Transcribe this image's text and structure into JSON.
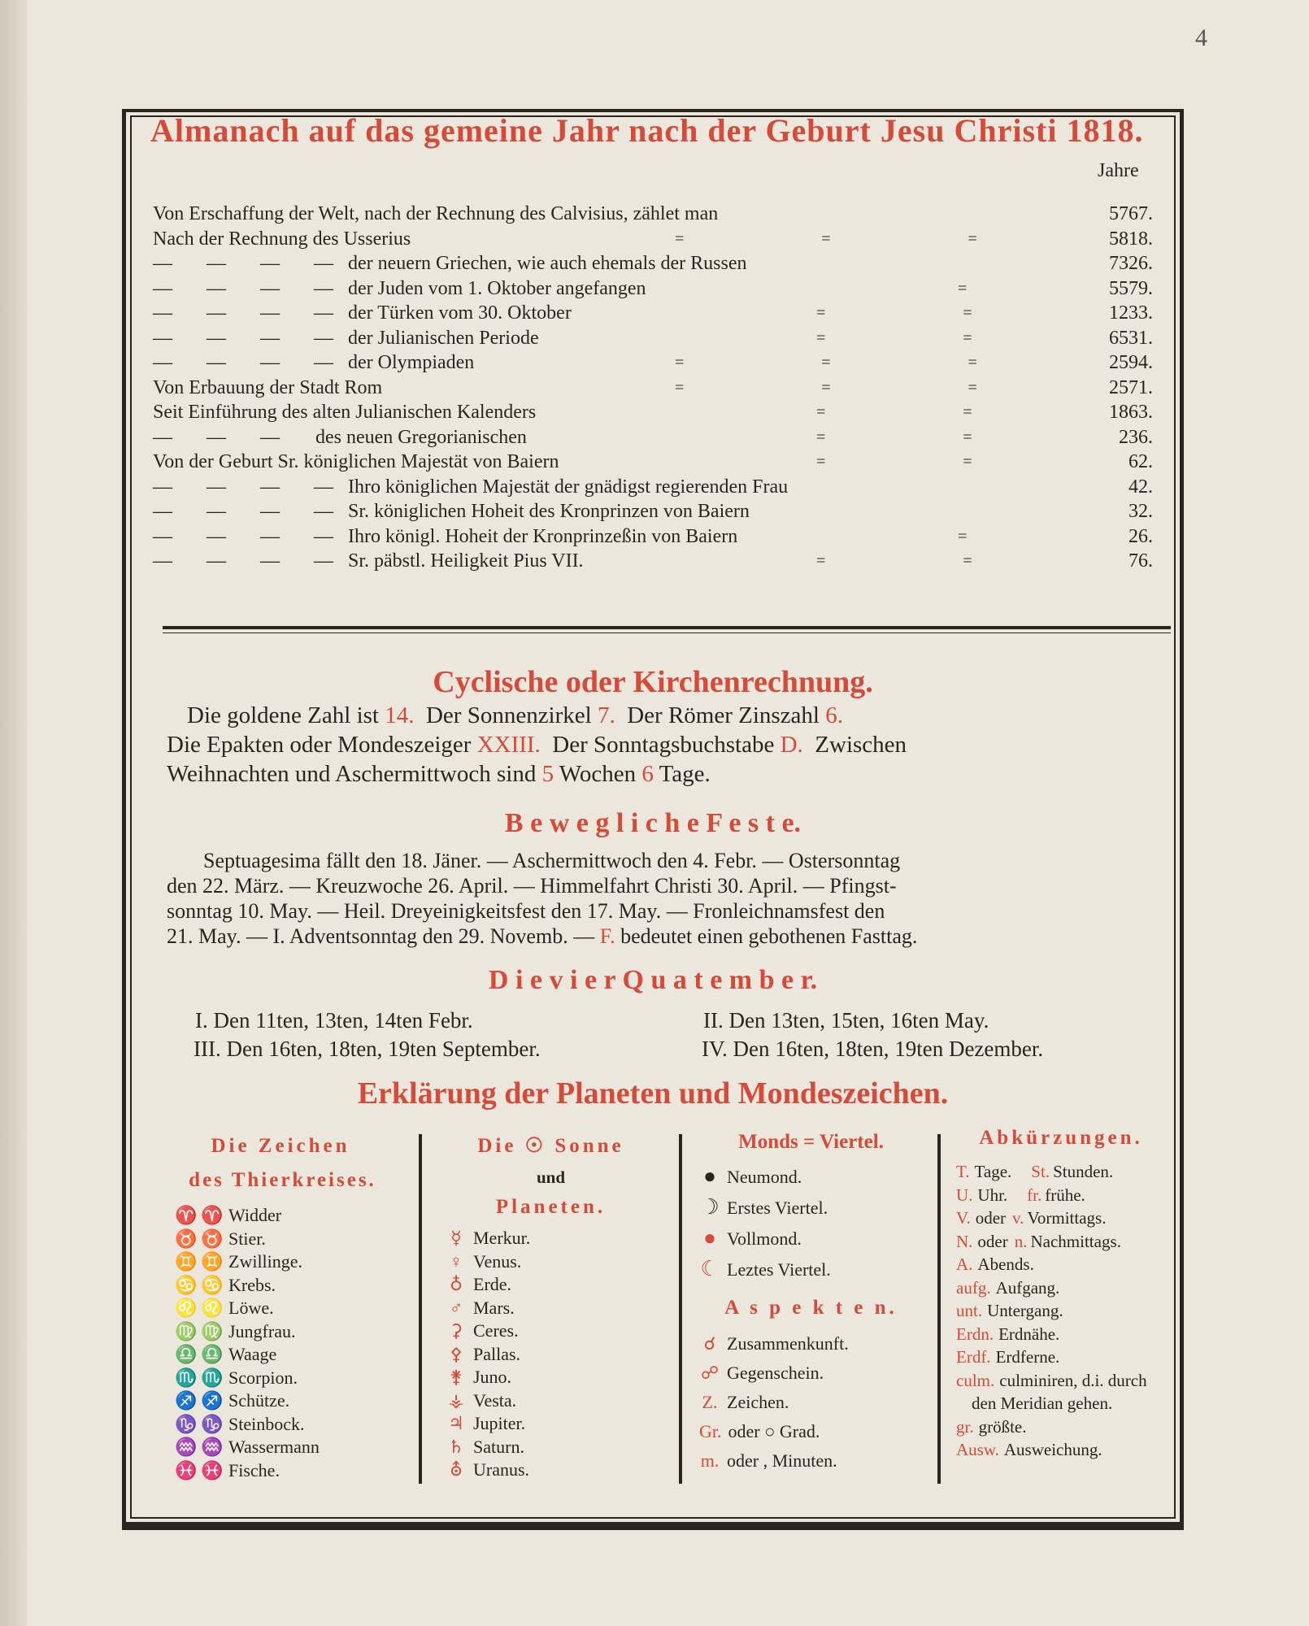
{
  "page_number": "4",
  "title": "Almanach auf das gemeine Jahr nach der Geburt Jesu Christi 1818.",
  "jahre_header": "Jahre",
  "years_table": [
    {
      "lead": "",
      "text": "Von Erschaffung der Welt, nach der Rechnung des Calvisius, zählet man",
      "fill": "",
      "value": "5767."
    },
    {
      "lead": "",
      "text": "Nach der Rechnung des Usserius",
      "fill": "= = =",
      "value": "5818."
    },
    {
      "lead": "— — — —",
      "text": "der neuern Griechen, wie auch ehemals der Russen",
      "fill": "",
      "value": "7326."
    },
    {
      "lead": "— — — —",
      "text": "der Juden vom 1. Oktober angefangen",
      "fill": "    =",
      "value": "5579."
    },
    {
      "lead": "— — — —",
      "text": "der Türken vom 30. Oktober",
      "fill": "  = =",
      "value": "1233."
    },
    {
      "lead": "— — — —",
      "text": "der Julianischen Periode",
      "fill": "  = =",
      "value": "6531."
    },
    {
      "lead": "— — — —",
      "text": "der Olympiaden",
      "fill": "= = =",
      "value": "2594."
    },
    {
      "lead": "",
      "text": "Von Erbauung der Stadt Rom",
      "fill": "= = =",
      "value": "2571."
    },
    {
      "lead": "",
      "text": "Seit Einführung des alten Julianischen Kalenders",
      "fill": "  = =",
      "value": "1863."
    },
    {
      "lead": "— — —",
      "text": "des neuen Gregorianischen",
      "fill": "  = =",
      "value": "236."
    },
    {
      "lead": "",
      "text": "Von der Geburt Sr. königlichen Majestät von Baiern",
      "fill": "  = =",
      "value": "62."
    },
    {
      "lead": "— — — —",
      "text": "Ihro königlichen Majestät der gnädigst regierenden Frau",
      "fill": "",
      "value": "42."
    },
    {
      "lead": "— — — —",
      "text": "Sr. königlichen Hoheit des Kronprinzen von Baiern",
      "fill": "",
      "value": "32."
    },
    {
      "lead": "— — — —",
      "text": "Ihro königl. Hoheit der Kronprinzeßin von Baiern",
      "fill": "    =",
      "value": "26."
    },
    {
      "lead": "— — — —",
      "text": "Sr. päbstl. Heiligkeit Pius VII.",
      "fill": "  = =",
      "value": "76."
    }
  ],
  "cyclic": {
    "heading": "Cyclische oder Kirchenrechnung.",
    "line1": [
      {
        "t": "Die goldene Zahl ist "
      },
      {
        "t": "14.",
        "red": true
      },
      {
        "t": "  Der Sonnenzirkel "
      },
      {
        "t": "7.",
        "red": true
      },
      {
        "t": "  Der Römer Zinszahl "
      },
      {
        "t": "6.",
        "red": true
      }
    ],
    "line2": [
      {
        "t": "Die Epakten oder Mondeszeiger "
      },
      {
        "t": "XXIII.",
        "red": true
      },
      {
        "t": "  Der Sonntagsbuchstabe "
      },
      {
        "t": "D.",
        "red": true
      },
      {
        "t": "  Zwischen"
      }
    ],
    "line3": [
      {
        "t": "Weihnachten und Aschermittwoch sind "
      },
      {
        "t": "5",
        "red": true
      },
      {
        "t": " Wochen "
      },
      {
        "t": "6",
        "red": true
      },
      {
        "t": " Tage."
      }
    ]
  },
  "feasts": {
    "heading": "B e w e g l i c h e   F e s t e.",
    "lines": [
      [
        {
          "t": "Septuagesima fällt den 18. Jäner. — Aschermittwoch den 4. Febr. — Ostersonntag"
        }
      ],
      [
        {
          "t": "den 22. März. — Kreuzwoche 26. April. — Himmelfahrt Christi 30. April. — Pfingst-"
        }
      ],
      [
        {
          "t": "sonntag 10. May. — Heil. Dreyeinigkeitsfest den 17. May. — Fronleichnamsfest den"
        }
      ],
      [
        {
          "t": "21. May. — I. Adventsonntag den 29. Novemb. — "
        },
        {
          "t": "F.",
          "red": true
        },
        {
          "t": " bedeutet einen gebothenen Fasttag."
        }
      ]
    ]
  },
  "quatember": {
    "heading": "D i e   v i e r   Q u a t e m b e r.",
    "items": [
      "I. Den 11ten, 13ten, 14ten Febr.",
      "II. Den 13ten, 15ten, 16ten May.",
      "III. Den 16ten, 18ten, 19ten September.",
      "IV. Den 16ten, 18ten, 19ten Dezember."
    ]
  },
  "legend": {
    "heading": "Erklärung der Planeten und Mondeszeichen.",
    "zodiac": {
      "heading1": "Die Zeichen",
      "heading2": "des Thierkreises.",
      "items": [
        {
          "sym": "♈",
          "name": "Widder"
        },
        {
          "sym": "♉",
          "name": "Stier."
        },
        {
          "sym": "♊",
          "name": "Zwillinge."
        },
        {
          "sym": "♋",
          "name": "Krebs."
        },
        {
          "sym": "♌",
          "name": "Löwe."
        },
        {
          "sym": "♍",
          "name": "Jungfrau."
        },
        {
          "sym": "♎",
          "name": "Waage"
        },
        {
          "sym": "♏",
          "name": "Scorpion."
        },
        {
          "sym": "♐",
          "name": "Schütze."
        },
        {
          "sym": "♑",
          "name": "Steinbock."
        },
        {
          "sym": "♒",
          "name": "Wassermann"
        },
        {
          "sym": "♓",
          "name": "Fische."
        }
      ]
    },
    "planets": {
      "heading1": "Die ☉ Sonne",
      "heading2": "und",
      "heading3": "Planeten.",
      "items": [
        {
          "sym": "☿",
          "name": "Merkur."
        },
        {
          "sym": "♀",
          "name": "Venus."
        },
        {
          "sym": "♁",
          "name": "Erde."
        },
        {
          "sym": "♂",
          "name": "Mars."
        },
        {
          "sym": "⚳",
          "name": "Ceres."
        },
        {
          "sym": "⚴",
          "name": "Pallas."
        },
        {
          "sym": "⚵",
          "name": "Juno."
        },
        {
          "sym": "⚶",
          "name": "Vesta."
        },
        {
          "sym": "♃",
          "name": "Jupiter."
        },
        {
          "sym": "♄",
          "name": "Saturn."
        },
        {
          "sym": "⛢",
          "name": "Uranus."
        }
      ]
    },
    "moon": {
      "heading": "Monds = Viertel.",
      "items": [
        {
          "sym": "●",
          "name": "Neumond.",
          "color": "#2a2522"
        },
        {
          "sym": "☽",
          "name": "Erstes Viertel.",
          "color": "#2a2522"
        },
        {
          "sym": "●",
          "name": "Vollmond.",
          "color": "#d54a38"
        },
        {
          "sym": "☾",
          "name": "Leztes Viertel.",
          "color": "#d54a38"
        }
      ],
      "aspects_heading": "A s p e k t e n.",
      "aspects": [
        {
          "sym": "☌",
          "name": "Zusammenkunft."
        },
        {
          "sym": "☍",
          "name": "Gegenschein."
        },
        {
          "sym": "Z.",
          "name": "Zeichen."
        },
        {
          "sym": "Gr.",
          "name": "oder ○ Grad."
        },
        {
          "sym": "m.",
          "name": "oder , Minuten."
        }
      ]
    },
    "abbrev": {
      "heading": "Abkürzungen.",
      "items": [
        {
          "a": "T.",
          "t": "Tage.",
          "a2": "St.",
          "t2": "Stunden."
        },
        {
          "a": "U.",
          "t": "Uhr.",
          "a2": "fr.",
          "t2": "frühe."
        },
        {
          "a": "V.",
          "t": "oder",
          "a2": "v.",
          "t2": "Vormittags."
        },
        {
          "a": "N.",
          "t": "oder",
          "a2": "n.",
          "t2": "Nachmittags."
        },
        {
          "a": "A.",
          "t": "Abends."
        },
        {
          "a": "aufg.",
          "t": "Aufgang."
        },
        {
          "a": "unt.",
          "t": "Untergang."
        },
        {
          "a": "Erdn.",
          "t": "Erdnähe."
        },
        {
          "a": "Erdf.",
          "t": "Erdferne."
        },
        {
          "a": "culm.",
          "t": "culminiren, d.i. durch"
        },
        {
          "a": "",
          "t": "den Meridian gehen."
        },
        {
          "a": "gr.",
          "t": "größte."
        },
        {
          "a": "Ausw.",
          "t": "Ausweichung."
        }
      ]
    }
  },
  "colors": {
    "ink": "#2a2522",
    "red": "#d54a38",
    "paper": "#ece7dc"
  }
}
